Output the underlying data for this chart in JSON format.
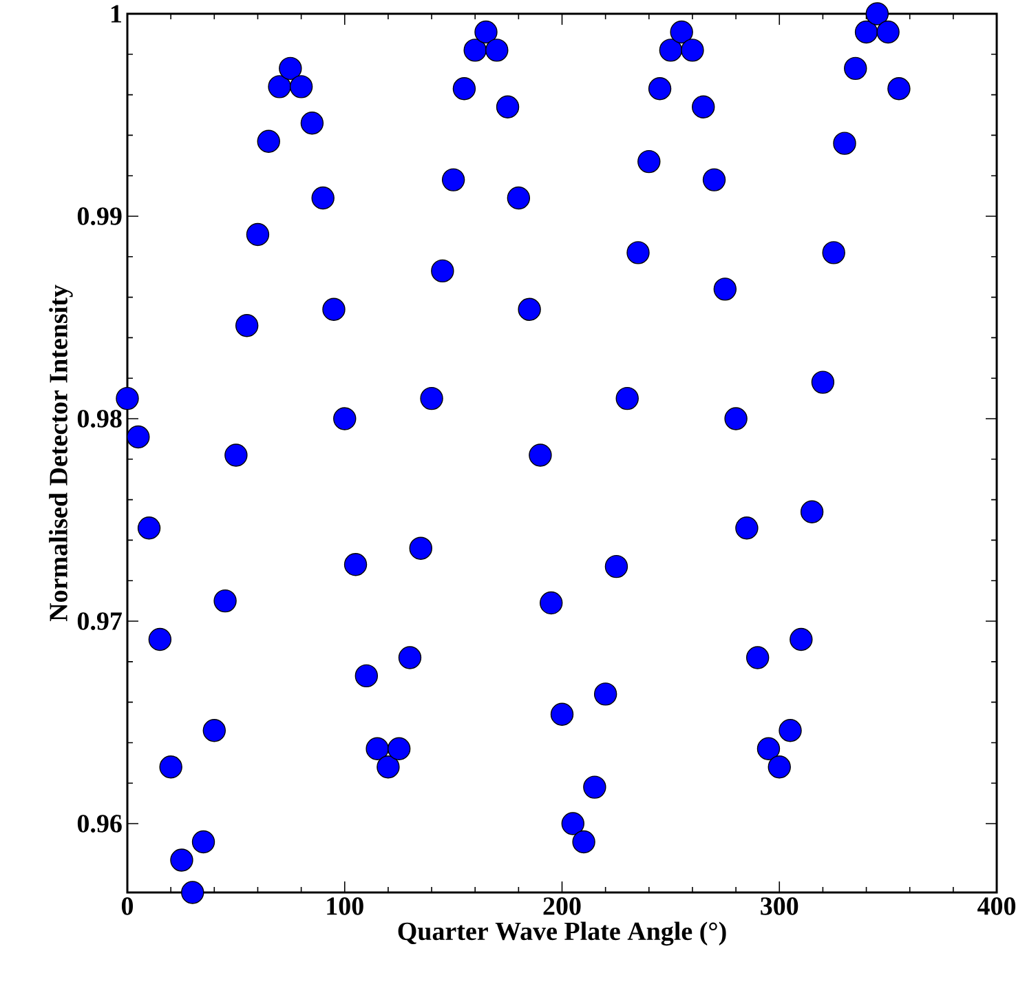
{
  "chart_data": {
    "type": "scatter",
    "xlabel": "Quarter Wave Plate Angle (°)",
    "ylabel": "Normalised Detector Intensity",
    "x": [
      0,
      5,
      10,
      15,
      20,
      25,
      30,
      35,
      40,
      45,
      50,
      55,
      60,
      65,
      70,
      75,
      80,
      85,
      90,
      95,
      100,
      105,
      110,
      115,
      120,
      125,
      130,
      135,
      140,
      145,
      150,
      155,
      160,
      165,
      170,
      175,
      180,
      185,
      190,
      195,
      200,
      205,
      210,
      215,
      220,
      225,
      230,
      235,
      240,
      245,
      250,
      255,
      260,
      265,
      270,
      275,
      280,
      285,
      290,
      295,
      300,
      305,
      310,
      315,
      320,
      325,
      330,
      335,
      340,
      345,
      350,
      355
    ],
    "values": [
      0.981,
      0.9791,
      0.9746,
      0.9691,
      0.9628,
      0.9582,
      0.9566,
      0.9591,
      0.9646,
      0.971,
      0.9782,
      0.9846,
      0.9891,
      0.9937,
      0.9964,
      0.9973,
      0.9964,
      0.9946,
      0.9909,
      0.9854,
      0.98,
      0.9728,
      0.9673,
      0.9637,
      0.9628,
      0.9637,
      0.9682,
      0.9736,
      0.981,
      0.9873,
      0.9918,
      0.9963,
      0.9982,
      0.9991,
      0.9982,
      0.9954,
      0.9909,
      0.9854,
      0.9782,
      0.9709,
      0.9654,
      0.96,
      0.9591,
      0.9618,
      0.9664,
      0.9727,
      0.981,
      0.9882,
      0.9927,
      0.9963,
      0.9982,
      0.9991,
      0.9982,
      0.9954,
      0.9918,
      0.9864,
      0.98,
      0.9746,
      0.9682,
      0.9637,
      0.9628,
      0.9646,
      0.9691,
      0.9754,
      0.9818,
      0.9882,
      0.9936,
      0.9973,
      0.9991,
      1.0,
      0.9991,
      0.9963
    ],
    "color": "#0000ff",
    "marker": "circle",
    "xlim": [
      0,
      400
    ],
    "ylim": [
      0.9566,
      1
    ],
    "xticks": [
      0,
      100,
      200,
      300,
      400
    ],
    "yticks": [
      0.96,
      0.97,
      0.98,
      0.99,
      1
    ],
    "grid": false,
    "legend": false
  }
}
